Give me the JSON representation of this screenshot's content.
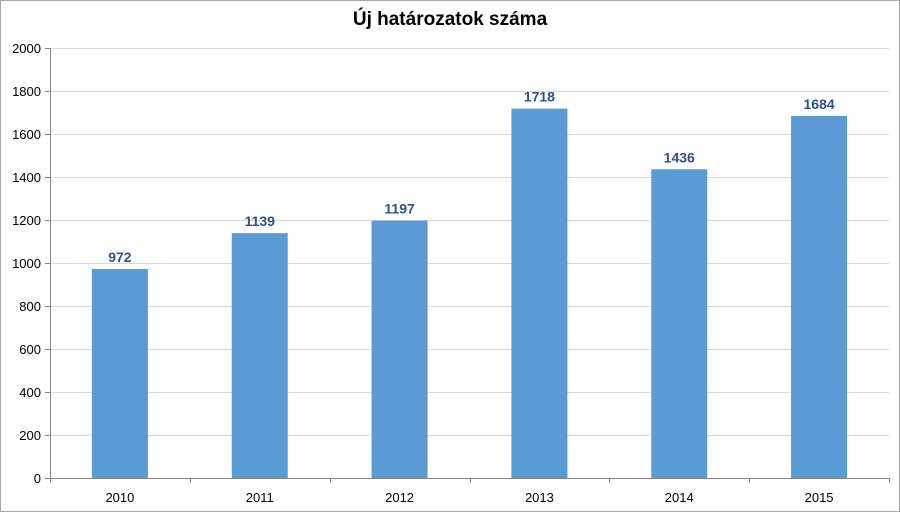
{
  "chart_data": {
    "type": "bar",
    "title": "Új határozatok száma",
    "categories": [
      "2010",
      "2011",
      "2012",
      "2013",
      "2014",
      "2015"
    ],
    "values": [
      972,
      1139,
      1197,
      1718,
      1436,
      1684
    ],
    "ylim": [
      0,
      2000
    ],
    "yticks": [
      0,
      200,
      400,
      600,
      800,
      1000,
      1200,
      1400,
      1600,
      1800,
      2000
    ],
    "xlabel": "",
    "ylabel": "",
    "grid": true,
    "legend": "none",
    "colors": {
      "bar": "#5b9bd5",
      "data_label": "#2f4f8f",
      "grid": "#d9d9d9",
      "axis": "#868686"
    }
  }
}
